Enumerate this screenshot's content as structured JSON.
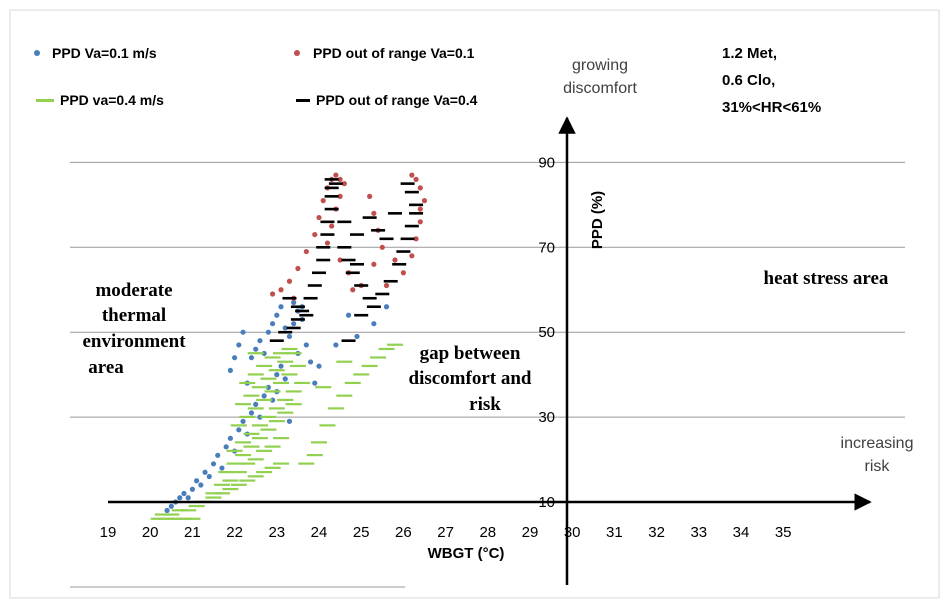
{
  "chart_data": {
    "type": "scatter",
    "xlabel": "WBGT (°C)",
    "ylabel": "PPD (%)",
    "xlim": [
      19,
      35
    ],
    "ylim": [
      10,
      95
    ],
    "x_ticks": [
      19,
      20,
      21,
      22,
      23,
      24,
      25,
      26,
      27,
      28,
      29,
      30,
      31,
      32,
      33,
      34,
      35
    ],
    "y_ticks": [
      10,
      30,
      50,
      70,
      90
    ],
    "grid": "horizontal",
    "legend": {
      "position": "top-left",
      "entries": [
        "PPD Va=0.1 m/s",
        "PPD out of range Va=0.1",
        "PPD va=0.4 m/s",
        "PPD out of range Va=0.4"
      ]
    },
    "annotations": {
      "conditions": [
        "1.2 Met,",
        "0.6 Clo,",
        "31%<HR<61%"
      ],
      "discomfort_arrow": [
        "growing",
        "discomfort"
      ],
      "risk_arrow": [
        "increasing",
        "risk"
      ],
      "moderate_area": [
        "moderate",
        "thermal",
        "environment",
        "area"
      ],
      "gap_area": [
        "gap between",
        "discomfort and",
        "risk"
      ],
      "heat_stress_area": "heat stress area"
    },
    "series": [
      {
        "name": "PPD Va=0.1 m/s",
        "marker": "dot",
        "color": "#4a7ebb",
        "points": [
          [
            20.4,
            8
          ],
          [
            20.5,
            9
          ],
          [
            20.6,
            10
          ],
          [
            20.7,
            11
          ],
          [
            20.8,
            12
          ],
          [
            20.9,
            11
          ],
          [
            21.0,
            13
          ],
          [
            21.1,
            15
          ],
          [
            21.2,
            14
          ],
          [
            21.3,
            17
          ],
          [
            21.4,
            16
          ],
          [
            21.5,
            19
          ],
          [
            21.6,
            21
          ],
          [
            21.7,
            18
          ],
          [
            21.8,
            23
          ],
          [
            21.9,
            25
          ],
          [
            22.0,
            22
          ],
          [
            22.1,
            27
          ],
          [
            22.2,
            29
          ],
          [
            22.3,
            26
          ],
          [
            22.4,
            31
          ],
          [
            22.5,
            33
          ],
          [
            22.6,
            30
          ],
          [
            22.7,
            35
          ],
          [
            22.8,
            37
          ],
          [
            22.9,
            34
          ],
          [
            23.0,
            40
          ],
          [
            23.1,
            42
          ],
          [
            23.2,
            39
          ],
          [
            22.4,
            44
          ],
          [
            22.5,
            46
          ],
          [
            22.6,
            48
          ],
          [
            22.7,
            45
          ],
          [
            22.8,
            50
          ],
          [
            22.9,
            52
          ],
          [
            23.0,
            54
          ],
          [
            23.1,
            56
          ],
          [
            23.2,
            51
          ],
          [
            23.3,
            49
          ],
          [
            23.4,
            57
          ],
          [
            23.5,
            55
          ],
          [
            23.6,
            53
          ],
          [
            23.7,
            47
          ],
          [
            23.8,
            43
          ],
          [
            23.9,
            38
          ],
          [
            22.2,
            50
          ],
          [
            22.1,
            47
          ],
          [
            22.0,
            44
          ],
          [
            21.9,
            41
          ],
          [
            22.3,
            38
          ],
          [
            23.6,
            56
          ],
          [
            23.4,
            52
          ],
          [
            23.0,
            36
          ],
          [
            23.5,
            45
          ],
          [
            24.7,
            54
          ],
          [
            24.4,
            47
          ],
          [
            24.0,
            42
          ],
          [
            25.6,
            56
          ],
          [
            25.3,
            52
          ],
          [
            24.9,
            49
          ],
          [
            23.3,
            29
          ]
        ]
      },
      {
        "name": "PPD out of range Va=0.1",
        "marker": "dot",
        "color": "#c0504d",
        "points": [
          [
            22.9,
            59
          ],
          [
            23.1,
            60
          ],
          [
            23.3,
            62
          ],
          [
            23.5,
            65
          ],
          [
            23.7,
            69
          ],
          [
            23.9,
            73
          ],
          [
            24.0,
            77
          ],
          [
            24.1,
            81
          ],
          [
            24.2,
            84
          ],
          [
            24.3,
            86
          ],
          [
            24.4,
            87
          ],
          [
            24.5,
            86
          ],
          [
            24.6,
            85
          ],
          [
            24.5,
            82
          ],
          [
            24.4,
            79
          ],
          [
            24.3,
            75
          ],
          [
            24.2,
            71
          ],
          [
            24.5,
            67
          ],
          [
            24.7,
            64
          ],
          [
            25.0,
            61
          ],
          [
            25.3,
            66
          ],
          [
            25.5,
            70
          ],
          [
            25.4,
            74
          ],
          [
            25.3,
            78
          ],
          [
            25.2,
            82
          ],
          [
            25.6,
            61
          ],
          [
            26.0,
            64
          ],
          [
            26.2,
            68
          ],
          [
            26.3,
            72
          ],
          [
            26.4,
            76
          ],
          [
            26.4,
            79
          ],
          [
            26.5,
            81
          ],
          [
            26.4,
            84
          ],
          [
            26.3,
            86
          ],
          [
            26.2,
            87
          ],
          [
            23.4,
            58
          ],
          [
            25.8,
            67
          ],
          [
            24.8,
            60
          ]
        ]
      },
      {
        "name": "PPD va=0.4 m/s",
        "marker": "dash",
        "color": "#92d050",
        "points": [
          [
            20.2,
            6
          ],
          [
            20.4,
            6
          ],
          [
            20.6,
            6
          ],
          [
            20.8,
            6
          ],
          [
            21.0,
            6
          ],
          [
            20.3,
            7
          ],
          [
            20.5,
            7
          ],
          [
            20.7,
            8
          ],
          [
            20.9,
            8
          ],
          [
            21.1,
            9
          ],
          [
            21.3,
            10
          ],
          [
            21.5,
            11
          ],
          [
            21.7,
            12
          ],
          [
            21.9,
            13
          ],
          [
            22.1,
            14
          ],
          [
            22.3,
            15
          ],
          [
            22.5,
            16
          ],
          [
            22.7,
            17
          ],
          [
            22.9,
            18
          ],
          [
            23.1,
            19
          ],
          [
            21.5,
            12
          ],
          [
            21.7,
            14
          ],
          [
            21.9,
            15
          ],
          [
            22.1,
            17
          ],
          [
            22.3,
            19
          ],
          [
            22.5,
            20
          ],
          [
            22.7,
            22
          ],
          [
            22.9,
            23
          ],
          [
            23.1,
            25
          ],
          [
            21.8,
            17
          ],
          [
            22.0,
            19
          ],
          [
            22.2,
            21
          ],
          [
            22.4,
            23
          ],
          [
            22.6,
            25
          ],
          [
            22.8,
            27
          ],
          [
            23.0,
            29
          ],
          [
            23.2,
            31
          ],
          [
            23.4,
            33
          ],
          [
            22.0,
            22
          ],
          [
            22.2,
            24
          ],
          [
            22.4,
            26
          ],
          [
            22.6,
            28
          ],
          [
            22.8,
            30
          ],
          [
            23.0,
            32
          ],
          [
            23.2,
            34
          ],
          [
            23.4,
            36
          ],
          [
            23.6,
            38
          ],
          [
            22.1,
            28
          ],
          [
            22.3,
            30
          ],
          [
            22.5,
            32
          ],
          [
            22.7,
            34
          ],
          [
            22.9,
            36
          ],
          [
            23.1,
            38
          ],
          [
            23.3,
            40
          ],
          [
            23.5,
            42
          ],
          [
            22.2,
            33
          ],
          [
            22.4,
            35
          ],
          [
            22.6,
            37
          ],
          [
            22.8,
            39
          ],
          [
            23.0,
            41
          ],
          [
            23.2,
            43
          ],
          [
            23.4,
            45
          ],
          [
            22.3,
            38
          ],
          [
            22.5,
            40
          ],
          [
            22.7,
            42
          ],
          [
            22.9,
            44
          ],
          [
            23.1,
            45
          ],
          [
            23.3,
            46
          ],
          [
            22.5,
            45
          ],
          [
            23.7,
            19
          ],
          [
            23.9,
            21
          ],
          [
            24.0,
            24
          ],
          [
            24.2,
            28
          ],
          [
            24.4,
            32
          ],
          [
            24.6,
            35
          ],
          [
            24.8,
            38
          ],
          [
            25.0,
            40
          ],
          [
            25.2,
            42
          ],
          [
            25.4,
            44
          ],
          [
            25.6,
            46
          ],
          [
            24.1,
            37
          ],
          [
            24.6,
            43
          ],
          [
            25.8,
            47
          ]
        ]
      },
      {
        "name": "PPD out of range Va=0.4",
        "marker": "dash",
        "color": "#000000",
        "points": [
          [
            23.0,
            48
          ],
          [
            23.2,
            50
          ],
          [
            23.4,
            51
          ],
          [
            23.5,
            53
          ],
          [
            23.6,
            55
          ],
          [
            23.8,
            58
          ],
          [
            23.9,
            61
          ],
          [
            24.0,
            64
          ],
          [
            24.1,
            67
          ],
          [
            24.1,
            70
          ],
          [
            24.2,
            73
          ],
          [
            24.2,
            76
          ],
          [
            24.3,
            79
          ],
          [
            24.3,
            82
          ],
          [
            24.3,
            84
          ],
          [
            24.3,
            86
          ],
          [
            24.4,
            85
          ],
          [
            24.6,
            70
          ],
          [
            24.7,
            67
          ],
          [
            24.8,
            64
          ],
          [
            25.0,
            61
          ],
          [
            25.2,
            58
          ],
          [
            25.3,
            56
          ],
          [
            25.0,
            54
          ],
          [
            24.7,
            48
          ],
          [
            25.5,
            59
          ],
          [
            25.7,
            62
          ],
          [
            25.9,
            66
          ],
          [
            26.0,
            69
          ],
          [
            26.1,
            72
          ],
          [
            26.2,
            75
          ],
          [
            26.3,
            78
          ],
          [
            26.3,
            80
          ],
          [
            26.2,
            83
          ],
          [
            26.1,
            85
          ],
          [
            25.2,
            77
          ],
          [
            25.4,
            74
          ],
          [
            25.6,
            72
          ],
          [
            25.8,
            78
          ],
          [
            24.9,
            73
          ],
          [
            24.6,
            76
          ],
          [
            24.9,
            66
          ],
          [
            23.3,
            58
          ],
          [
            23.5,
            56
          ],
          [
            23.7,
            54
          ]
        ]
      }
    ]
  }
}
